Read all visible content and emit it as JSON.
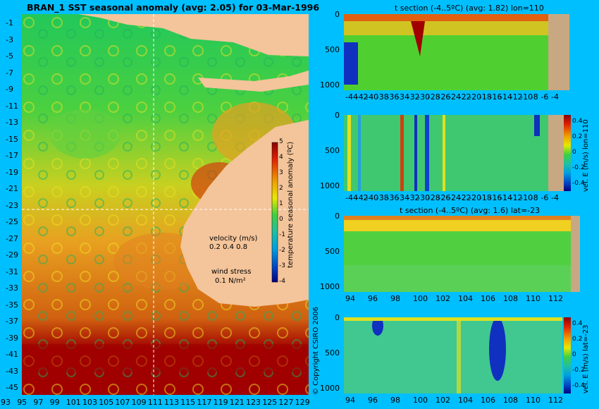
{
  "colors": {
    "background": "#00bfff",
    "land": "#f4c49a",
    "section_land": "#c8a882"
  },
  "chart_data": [
    {
      "type": "heatmap",
      "title": "BRAN_1  SST seasonal anomaly  (avg: 2.05) for 03-Mar-1996",
      "x_ticks": [
        "93",
        "95",
        "97",
        "99",
        "101",
        "103",
        "105",
        "107",
        "109",
        "111",
        "113",
        "115",
        "117",
        "119",
        "121",
        "123",
        "125",
        "127",
        "129"
      ],
      "y_ticks": [
        "-1",
        "-3",
        "-5",
        "-7",
        "-9",
        "-11",
        "-13",
        "-15",
        "-17",
        "-19",
        "-21",
        "-23",
        "-25",
        "-27",
        "-29",
        "-31",
        "-33",
        "-35",
        "-37",
        "-39",
        "-41",
        "-43",
        "-45"
      ],
      "xlim": [
        93,
        130
      ],
      "ylim": [
        -45,
        0
      ],
      "colorbar": {
        "label": "temperature seasonal anomaly (ºC)",
        "ticks": [
          "5",
          "4",
          "3",
          "2",
          "1",
          "0",
          "-1",
          "-2",
          "-3",
          "-4"
        ],
        "range": [
          -4,
          5
        ]
      },
      "legend": {
        "velocity_label": "velocity (m/s)",
        "velocity_values": "0.2 0.4 0.8",
        "wind_label": "wind stress",
        "wind_value": "0.1 N/m²"
      },
      "crosshair": {
        "lon": 110,
        "lat": -23
      },
      "copyright": "© Copyright CSIRO 2006"
    },
    {
      "type": "heatmap",
      "title": "t section (-4..5ºC) (avg: 1.82) lon=110",
      "x_ticks": [
        "-44",
        "-42",
        "-40",
        "-38",
        "-36",
        "-34",
        "-32",
        "-30",
        "-28",
        "-26",
        "-24",
        "-22",
        "-20",
        "-18",
        "-16",
        "-14",
        "-12",
        "-10",
        "-8",
        "-6",
        "-4"
      ],
      "y_ticks": [
        "0",
        "500",
        "1000"
      ]
    },
    {
      "type": "heatmap",
      "title": "",
      "x_ticks": [
        "-44",
        "-42",
        "-40",
        "-38",
        "-36",
        "-34",
        "-32",
        "-30",
        "-28",
        "-26",
        "-24",
        "-22",
        "-20",
        "-18",
        "-16",
        "-14",
        "-12",
        "-10",
        "-8",
        "-6",
        "-4"
      ],
      "y_ticks": [
        "0",
        "500",
        "1000"
      ],
      "colorbar": {
        "label": "vel. E (m/s) lon=110",
        "ticks": [
          "0.4",
          "0.2",
          "0",
          "-0.2",
          "-0.4"
        ]
      }
    },
    {
      "type": "heatmap",
      "title": "t section (-4..5ºC) (avg: 1.6) lat=-23",
      "x_ticks": [
        "94",
        "96",
        "98",
        "100",
        "102",
        "104",
        "106",
        "108",
        "110",
        "112"
      ],
      "y_ticks": [
        "0",
        "500",
        "1000"
      ]
    },
    {
      "type": "heatmap",
      "title": "",
      "x_ticks": [
        "94",
        "96",
        "98",
        "100",
        "102",
        "104",
        "106",
        "108",
        "110",
        "112"
      ],
      "y_ticks": [
        "0",
        "500",
        "1000"
      ],
      "colorbar": {
        "label": "vel. E (m/s) lat=-23",
        "ticks": [
          "0.4",
          "0.2",
          "0",
          "-0.2",
          "-0.4"
        ]
      }
    }
  ]
}
